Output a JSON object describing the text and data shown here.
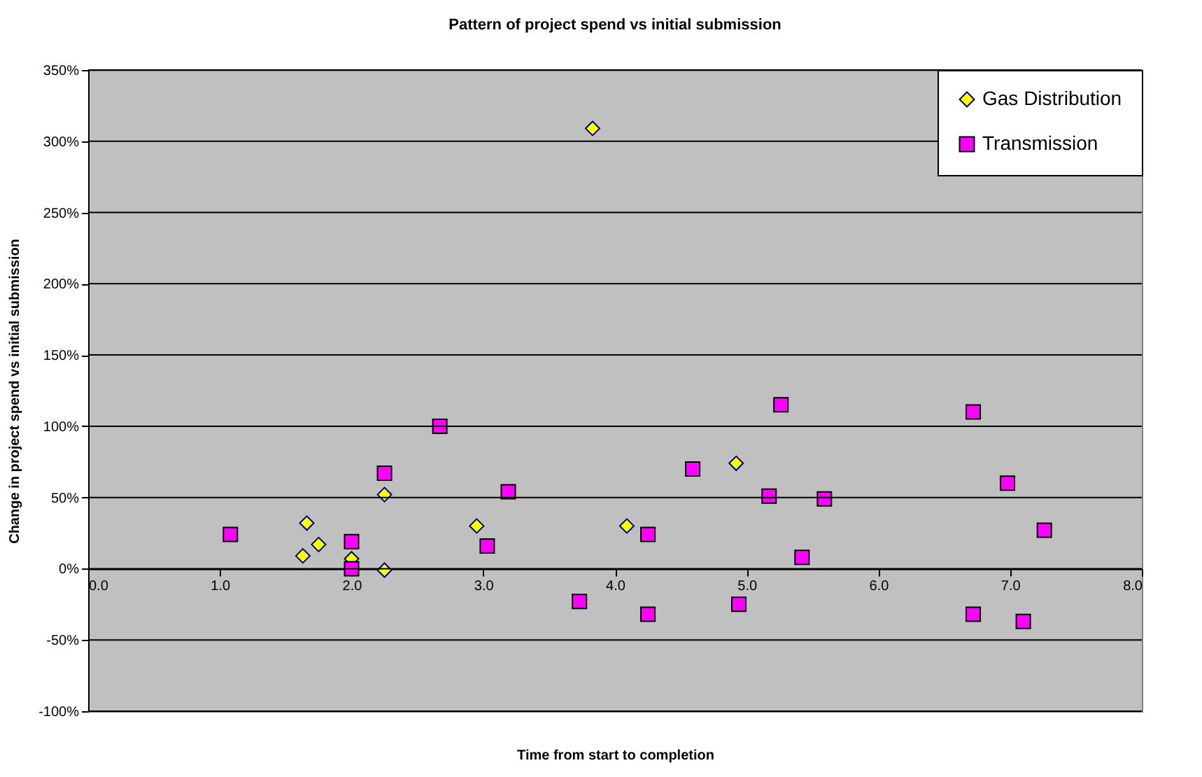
{
  "chart_data": {
    "type": "scatter",
    "title": "Pattern of project spend vs initial submission",
    "xlabel": "Time from start to completion",
    "ylabel": "Change in project spend vs initial submission",
    "xlim": [
      0,
      8
    ],
    "xticks": [
      {
        "value": 0,
        "label": "0.0"
      },
      {
        "value": 1,
        "label": "1.0"
      },
      {
        "value": 2,
        "label": "2.0"
      },
      {
        "value": 3,
        "label": "3.0"
      },
      {
        "value": 4,
        "label": "4.0"
      },
      {
        "value": 5,
        "label": "5.0"
      },
      {
        "value": 6,
        "label": "6.0"
      },
      {
        "value": 7,
        "label": "7.0"
      },
      {
        "value": 8,
        "label": "8.0"
      }
    ],
    "ylim": [
      -100,
      350
    ],
    "yticks": [
      {
        "value": -100,
        "label": "-100%"
      },
      {
        "value": -50,
        "label": "-50%"
      },
      {
        "value": 0,
        "label": "0%"
      },
      {
        "value": 50,
        "label": "50%"
      },
      {
        "value": 100,
        "label": "100%"
      },
      {
        "value": 150,
        "label": "150%"
      },
      {
        "value": 200,
        "label": "200%"
      },
      {
        "value": 250,
        "label": "250%"
      },
      {
        "value": 300,
        "label": "300%"
      },
      {
        "value": 350,
        "label": "350%"
      }
    ],
    "grid": "y",
    "legend": "top right",
    "series": [
      {
        "name": "Gas Distribution",
        "color": "#ffff00",
        "marker": "diamond",
        "x": [
          1.66,
          1.63,
          1.75,
          2.25,
          2.0,
          2.25,
          2.95,
          3.83,
          4.09,
          4.92
        ],
        "values": [
          32,
          9,
          17,
          52,
          7,
          -1,
          30,
          309,
          30,
          74
        ]
      },
      {
        "name": "Transmission",
        "color": "#ff00ff",
        "marker": "square",
        "x": [
          1.08,
          2.67,
          2.25,
          3.19,
          2.0,
          2.0,
          3.03,
          3.73,
          5.26,
          6.72,
          4.59,
          5.17,
          5.59,
          6.98,
          4.25,
          7.26,
          5.42,
          4.25,
          4.94,
          6.72,
          7.1
        ],
        "values": [
          24,
          100,
          67,
          54,
          19,
          0,
          16,
          -23,
          115,
          110,
          70,
          51,
          49,
          60,
          24,
          27,
          8,
          -32,
          -25,
          -32,
          -37
        ]
      }
    ]
  }
}
